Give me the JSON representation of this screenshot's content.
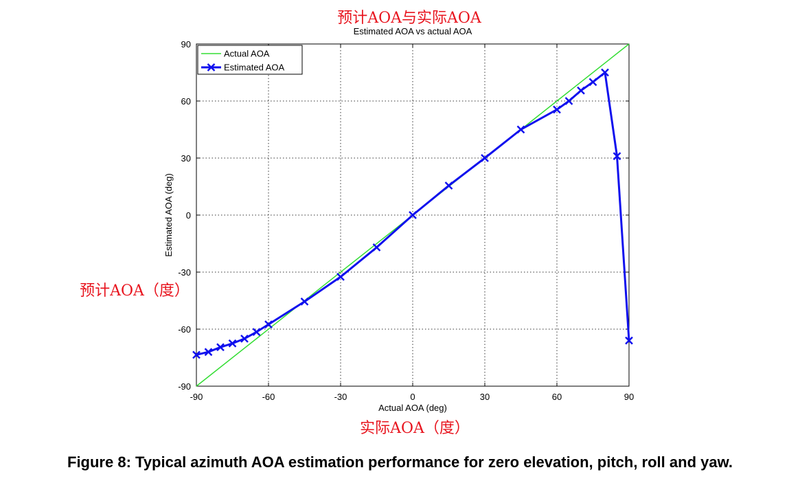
{
  "annotations": {
    "cn_title": "预计AOA与实际AOA",
    "cn_ylabel": "预计AOA（度）",
    "cn_xlabel": "实际AOA（度）"
  },
  "caption": "Figure 8: Typical azimuth AOA estimation performance for zero elevation, pitch, roll and yaw.",
  "colors": {
    "actual_line": "#33dd33",
    "estimated_line": "#1010ee",
    "annotation_red": "#e8141e",
    "grid": "#333333"
  },
  "chart_data": {
    "type": "line",
    "title": "Estimated AOA vs actual AOA",
    "xlabel": "Actual AOA (deg)",
    "ylabel": "Estimated AOA (deg)",
    "xlim": [
      -90,
      90
    ],
    "ylim": [
      -90,
      90
    ],
    "xticks": [
      -90,
      -60,
      -30,
      0,
      30,
      60,
      90
    ],
    "yticks": [
      -90,
      -60,
      -30,
      0,
      30,
      60,
      90
    ],
    "grid": true,
    "legend_position": "top-left",
    "series": [
      {
        "name": "Actual AOA",
        "marker": "none",
        "x": [
          -90,
          90
        ],
        "y": [
          -90,
          90
        ]
      },
      {
        "name": "Estimated AOA",
        "marker": "x",
        "x": [
          -90,
          -85,
          -80,
          -75,
          -70,
          -65,
          -60,
          -45,
          -30,
          -15,
          0,
          15,
          30,
          45,
          60,
          65,
          70,
          75,
          80,
          85,
          90
        ],
        "y": [
          -73.5,
          -72,
          -69.5,
          -67.5,
          -65,
          -61.5,
          -57.5,
          -45.5,
          -32.5,
          -17,
          0,
          15.5,
          30,
          45,
          55.5,
          60,
          65.5,
          70,
          75,
          31,
          -66
        ]
      }
    ]
  }
}
